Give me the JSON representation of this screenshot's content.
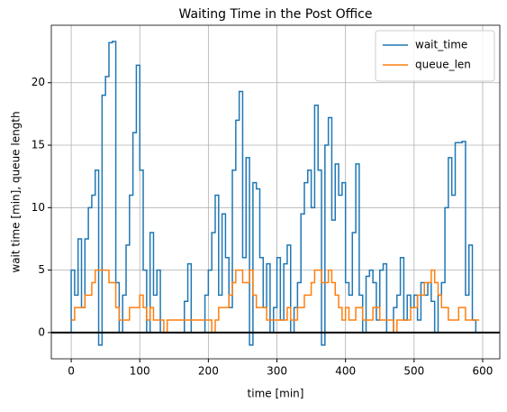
{
  "chart_data": {
    "type": "line",
    "drawstyle": "steps-pre",
    "title": "Waiting Time in the Post Office",
    "xlabel": "time [min]",
    "ylabel": "wait time [min], queue length",
    "x": [
      0,
      5,
      10,
      15,
      20,
      25,
      30,
      35,
      40,
      45,
      50,
      55,
      60,
      65,
      70,
      75,
      80,
      85,
      90,
      95,
      100,
      105,
      110,
      115,
      120,
      125,
      130,
      135,
      140,
      145,
      150,
      155,
      160,
      165,
      170,
      175,
      180,
      185,
      190,
      195,
      200,
      205,
      210,
      215,
      220,
      225,
      230,
      235,
      240,
      245,
      250,
      255,
      260,
      265,
      270,
      275,
      280,
      285,
      290,
      295,
      300,
      305,
      310,
      315,
      320,
      325,
      330,
      335,
      340,
      345,
      350,
      355,
      360,
      365,
      370,
      375,
      380,
      385,
      390,
      395,
      400,
      405,
      410,
      415,
      420,
      425,
      430,
      435,
      440,
      445,
      450,
      455,
      460,
      465,
      470,
      475,
      480,
      485,
      490,
      495,
      500,
      505,
      510,
      515,
      520,
      525,
      530,
      535,
      540,
      545,
      550,
      555,
      560,
      565,
      570,
      575,
      580,
      585,
      590,
      595
    ],
    "series": [
      {
        "name": "wait_time",
        "color": "#1f77b4",
        "values": [
          0,
          5,
          3,
          7.5,
          2,
          7.5,
          10,
          11,
          13,
          -1,
          19,
          20.5,
          23.2,
          23.3,
          4,
          0,
          3,
          7,
          11,
          16,
          21.4,
          13,
          5,
          0,
          8,
          3,
          5,
          0,
          0,
          0,
          0,
          0,
          0,
          0,
          2.5,
          5.5,
          0,
          0,
          0,
          0,
          3,
          5,
          8,
          11,
          3,
          9.5,
          6,
          2,
          13,
          17,
          19.3,
          6,
          14,
          -1,
          12,
          11.5,
          6,
          2,
          5.5,
          0,
          2,
          6,
          1,
          5.5,
          7,
          0,
          2,
          4,
          9.5,
          12,
          13,
          10,
          18.2,
          13,
          -1,
          15,
          17.2,
          9,
          13.5,
          11,
          12,
          4,
          3,
          8,
          13.5,
          3,
          0,
          4.5,
          5,
          4,
          1,
          5,
          5.5,
          0,
          0,
          2,
          3,
          6,
          1,
          3,
          2,
          3,
          1,
          4,
          3,
          4,
          2.5,
          0,
          3,
          4,
          10,
          14,
          11,
          15.2,
          15.2,
          15.3,
          3,
          7,
          1,
          0
        ]
      },
      {
        "name": "queue_len",
        "color": "#ff7f0e",
        "values": [
          1,
          1,
          2,
          2,
          2,
          3,
          3,
          4,
          5,
          5,
          5,
          5,
          4,
          4,
          2,
          1,
          1,
          1,
          2,
          2,
          2,
          3,
          2,
          1,
          2,
          1,
          1,
          1,
          0,
          1,
          1,
          1,
          1,
          1,
          1,
          1,
          1,
          1,
          1,
          1,
          1,
          1,
          0,
          1,
          2,
          2,
          2,
          3,
          4,
          5,
          5,
          4,
          4,
          5,
          3,
          2,
          2,
          2,
          1,
          1,
          1,
          1,
          1,
          1,
          2,
          1,
          1,
          2,
          2,
          3,
          3,
          4,
          5,
          5,
          4,
          4,
          5,
          4,
          3,
          2,
          1,
          2,
          1,
          1,
          2,
          2,
          1,
          1,
          1,
          2,
          2,
          1,
          1,
          1,
          1,
          0,
          1,
          1,
          1,
          1,
          2,
          2,
          3,
          3,
          4,
          4,
          5,
          4,
          3,
          2,
          2,
          1,
          1,
          1,
          2,
          2,
          1,
          1,
          1,
          1
        ]
      }
    ],
    "hline": 0,
    "xlim": [
      -29,
      625
    ],
    "ylim": [
      -2.1,
      24.6
    ],
    "xticks": [
      0,
      100,
      200,
      300,
      400,
      500,
      600
    ],
    "yticks": [
      0,
      5,
      10,
      15,
      20
    ],
    "grid": true,
    "legend": "upper right"
  }
}
